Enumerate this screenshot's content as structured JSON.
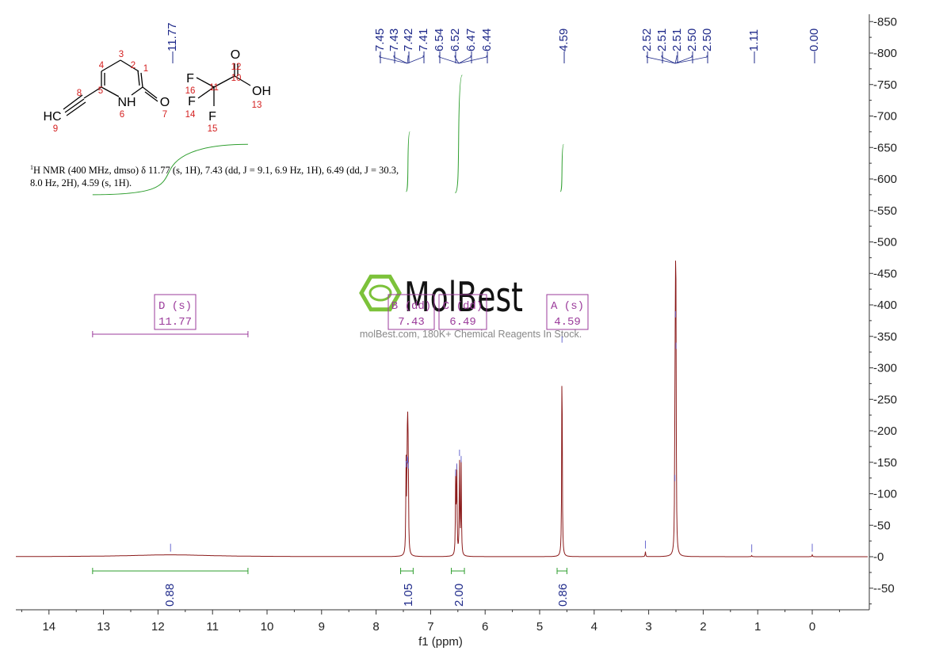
{
  "chart_data": {
    "type": "line",
    "title": "",
    "xlabel": "f1 (ppm)",
    "ylabel": "",
    "xlim": [
      14.5,
      -1.0
    ],
    "ylim": [
      -85,
      860
    ],
    "x_reversed": true,
    "grid": false,
    "x_ticks": [
      14,
      13,
      12,
      11,
      10,
      9,
      8,
      7,
      6,
      5,
      4,
      3,
      2,
      1,
      0
    ],
    "y_ticks": [
      850,
      800,
      750,
      700,
      650,
      600,
      550,
      500,
      450,
      400,
      350,
      300,
      250,
      200,
      150,
      100,
      50,
      0,
      -50
    ],
    "spectrum_color": "#8b1a1a",
    "peaks": [
      {
        "ppm": 11.77,
        "height": 3,
        "width": 0.9
      },
      {
        "ppm": 7.45,
        "height": 142
      },
      {
        "ppm": 7.43,
        "height": 150
      },
      {
        "ppm": 7.42,
        "height": 148
      },
      {
        "ppm": 7.41,
        "height": 140
      },
      {
        "ppm": 6.54,
        "height": 128
      },
      {
        "ppm": 6.52,
        "height": 138
      },
      {
        "ppm": 6.47,
        "height": 160
      },
      {
        "ppm": 6.44,
        "height": 150
      },
      {
        "ppm": 4.59,
        "height": 340
      },
      {
        "ppm": 3.06,
        "height": 8
      },
      {
        "ppm": 2.52,
        "height": 120
      },
      {
        "ppm": 2.51,
        "height": 380
      },
      {
        "ppm": 2.5,
        "height": 330
      },
      {
        "ppm": 1.11,
        "height": 2
      },
      {
        "ppm": 0.0,
        "height": 3
      }
    ],
    "peak_labels": [
      "11.77",
      "7.45",
      "7.43",
      "7.42",
      "7.41",
      "6.54",
      "6.52",
      "6.47",
      "6.44",
      "4.59",
      "2.52",
      "2.51",
      "2.51",
      "2.50",
      "2.50",
      "1.11",
      "0.00"
    ],
    "peak_label_groups": [
      {
        "ppm": [
          11.77
        ],
        "labels": [
          "11.77"
        ]
      },
      {
        "ppm": [
          7.43,
          6.49
        ],
        "labels": [
          "7.45",
          "7.43",
          "7.42",
          "7.41",
          "6.54",
          "6.52",
          "6.47",
          "6.44"
        ]
      },
      {
        "ppm": [
          4.59
        ],
        "labels": [
          "4.59"
        ]
      },
      {
        "ppm": [
          2.51
        ],
        "labels": [
          "2.52",
          "2.51",
          "2.51",
          "2.50",
          "2.50"
        ]
      },
      {
        "ppm": [
          1.11
        ],
        "labels": [
          "1.11"
        ]
      },
      {
        "ppm": [
          0.0
        ],
        "labels": [
          "0.00"
        ]
      }
    ],
    "integrals": [
      {
        "from": 13.2,
        "to": 10.35,
        "value": "0.88",
        "label_ppm": 11.8
      },
      {
        "from": 7.55,
        "to": 7.32,
        "value": "1.05",
        "label_ppm": 7.43
      },
      {
        "from": 6.62,
        "to": 6.38,
        "value": "2.00",
        "label_ppm": 6.5
      },
      {
        "from": 4.68,
        "to": 4.5,
        "value": "0.86",
        "label_ppm": 4.59
      }
    ],
    "integral_curves": [
      {
        "from": 13.2,
        "to": 10.35,
        "y_start": 575,
        "y_end": 655
      },
      {
        "from": 7.45,
        "to": 7.38,
        "y_start": 580,
        "y_end": 675
      },
      {
        "from": 6.55,
        "to": 6.42,
        "y_start": 578,
        "y_end": 765
      },
      {
        "from": 4.62,
        "to": 4.56,
        "y_start": 580,
        "y_end": 655
      }
    ],
    "multiplets": [
      {
        "label": "D (s)",
        "shift": "11.77",
        "ppm": 11.77,
        "bar_from": 13.2,
        "bar_to": 10.35
      },
      {
        "label": "B (dd)",
        "shift": "7.43",
        "ppm": 7.43
      },
      {
        "label": "C (dd)",
        "shift": "6.49",
        "ppm": 6.49
      },
      {
        "label": "A (s)",
        "shift": "4.59",
        "ppm": 4.59
      }
    ]
  },
  "description": {
    "line1_sup": "1",
    "line1": "H NMR (400 MHz, dmso) δ 11.77 (s, 1H), 7.43 (dd, J = 9.1, 6.9 Hz, 1H), 6.49 (dd, J = 30.3,",
    "line2": "8.0 Hz, 2H), 4.59 (s, 1H)."
  },
  "structure": {
    "atoms": [
      "HC",
      "NH",
      "O",
      "O",
      "OH",
      "F",
      "F",
      "F"
    ],
    "numbers": [
      "1",
      "2",
      "3",
      "4",
      "5",
      "6",
      "7",
      "8",
      "9",
      "10",
      "11",
      "12",
      "13",
      "14",
      "15",
      "16"
    ]
  },
  "watermark": {
    "brand": "MolBest",
    "tagline": "molBest.com, 180K+ Chemical Reagents In Stock."
  },
  "colors": {
    "spectrum": "#8b1a1a",
    "integral": "#2e9e2e",
    "label": "#1f2a8a",
    "multiplet": "#9b3b9b",
    "atom_number": "#d42020",
    "watermark": "#7cc23a"
  }
}
